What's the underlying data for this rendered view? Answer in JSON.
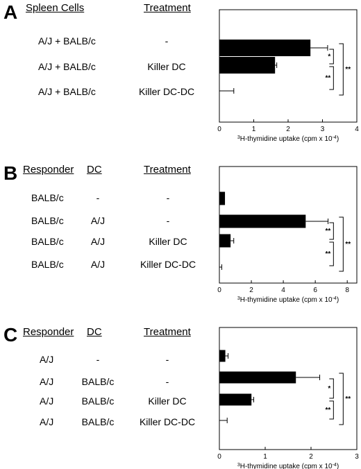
{
  "figure": {
    "panels": [
      {
        "label": "A",
        "headers": [
          "Spleen Cells",
          "Treatment"
        ],
        "rows": [
          [
            "A/J + BALB/c",
            "-"
          ],
          [
            "A/J + BALB/c",
            "Killer DC"
          ],
          [
            "A/J + BALB/c",
            "Killer DC-DC"
          ]
        ],
        "significance": [
          "*",
          "**",
          "**"
        ]
      },
      {
        "label": "B",
        "headers": [
          "Responder",
          "DC",
          "Treatment"
        ],
        "rows": [
          [
            "BALB/c",
            "-",
            "-"
          ],
          [
            "BALB/c",
            "A/J",
            "-"
          ],
          [
            "BALB/c",
            "A/J",
            "Killer DC"
          ],
          [
            "BALB/c",
            "A/J",
            "Killer DC-DC"
          ]
        ],
        "significance": [
          "**",
          "**",
          "**"
        ]
      },
      {
        "label": "C",
        "headers": [
          "Responder",
          "DC",
          "Treatment"
        ],
        "rows": [
          [
            "A/J",
            "-",
            "-"
          ],
          [
            "A/J",
            "BALB/c",
            "-"
          ],
          [
            "A/J",
            "BALB/c",
            "Killer DC"
          ],
          [
            "A/J",
            "BALB/c",
            "Killer DC-DC"
          ]
        ],
        "significance": [
          "*",
          "**",
          "**"
        ]
      }
    ]
  },
  "chart_data": [
    {
      "type": "bar",
      "orientation": "horizontal",
      "categories": [
        "A/J + BALB/c | -",
        "A/J + BALB/c | Killer DC",
        "A/J + BALB/c | Killer DC-DC"
      ],
      "values": [
        2.65,
        1.62,
        0.0
      ],
      "errors": [
        0.5,
        0.05,
        0.42
      ],
      "xlabel_sup": "3",
      "xlabel_main": "H-thymidine uptake (cpm x 10",
      "xlabel_exp": "-4",
      "xlabel_end": ")",
      "xlim": [
        0,
        4
      ],
      "xticks": [
        "0",
        "1",
        "2",
        "3",
        "4"
      ],
      "bar_color": "#000000",
      "grid": false
    },
    {
      "type": "bar",
      "orientation": "horizontal",
      "categories": [
        "BALB/c | - | -",
        "BALB/c | A/J | -",
        "BALB/c | A/J | Killer DC",
        "BALB/c | A/J | Killer DC-DC"
      ],
      "values": [
        0.35,
        5.4,
        0.7,
        0.0
      ],
      "errors": [
        0.0,
        1.4,
        0.2,
        0.15
      ],
      "xlabel_sup": "3",
      "xlabel_main": "H-thymidine uptake (cpm x 10",
      "xlabel_exp": "-4",
      "xlabel_end": ")",
      "xlim": [
        0,
        8.6
      ],
      "xticks": [
        "0",
        "2",
        "4",
        "6",
        "8"
      ],
      "bar_color": "#000000",
      "grid": false
    },
    {
      "type": "bar",
      "orientation": "horizontal",
      "categories": [
        "A/J | - | -",
        "A/J | BALB/c | -",
        "A/J | BALB/c | Killer DC",
        "A/J | BALB/c | Killer DC-DC"
      ],
      "values": [
        0.13,
        1.67,
        0.7,
        0.0
      ],
      "errors": [
        0.06,
        0.52,
        0.05,
        0.17
      ],
      "xlabel_sup": "3",
      "xlabel_main": "H-thymidine uptake (cpm x 10",
      "xlabel_exp": "-4",
      "xlabel_end": ")",
      "xlim": [
        0,
        3
      ],
      "xticks": [
        "0",
        "1",
        "2",
        "3"
      ],
      "bar_color": "#000000",
      "grid": false
    }
  ]
}
